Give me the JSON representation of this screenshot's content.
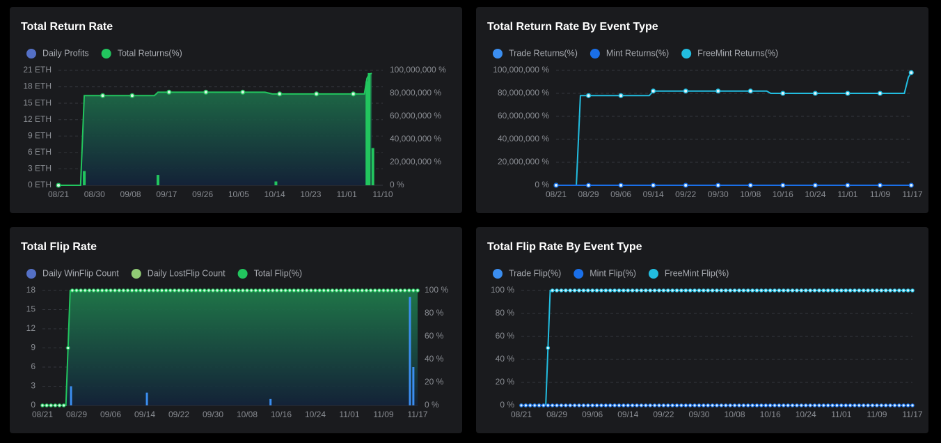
{
  "panels": [
    {
      "title": "Total Return Rate"
    },
    {
      "title": "Total Return Rate By Event Type"
    },
    {
      "title": "Total Flip Rate"
    },
    {
      "title": "Total Flip Rate By Event Type"
    }
  ],
  "chart_data": [
    {
      "type": "bar",
      "title": "Total Return Rate",
      "legend": [
        {
          "name": "Daily Profits",
          "color": "#5470c6"
        },
        {
          "name": "Total Returns(%)",
          "color": "#22c55e"
        }
      ],
      "y_left_ticks": [
        "0 ETH",
        "3 ETH",
        "6 ETH",
        "9 ETH",
        "12 ETH",
        "15 ETH",
        "18 ETH",
        "21 ETH"
      ],
      "y_left_range": [
        0,
        21
      ],
      "y_right_ticks": [
        "0 %",
        "20,000,000 %",
        "40,000,000 %",
        "60,000,000 %",
        "80,000,000 %",
        "100,000,000 %"
      ],
      "y_right_range": [
        0,
        100000000
      ],
      "x_ticks": [
        "08/21",
        "08/30",
        "09/08",
        "09/17",
        "09/26",
        "10/05",
        "10/14",
        "10/23",
        "11/01",
        "11/10"
      ],
      "x_range": [
        0,
        88
      ],
      "bars": [
        {
          "x": 7,
          "value": 2.6
        },
        {
          "x": 27,
          "value": 1.9
        },
        {
          "x": 59,
          "value": 0.7
        },
        {
          "x": 83.7,
          "value": 19.0
        },
        {
          "x": 84.3,
          "value": 20.5
        },
        {
          "x": 85.3,
          "value": 6.8
        }
      ],
      "line": [
        {
          "x": 0,
          "y": 0
        },
        {
          "x": 6,
          "y": 0
        },
        {
          "x": 7,
          "y": 78000000
        },
        {
          "x": 12,
          "y": 78000000
        },
        {
          "x": 20,
          "y": 78000000
        },
        {
          "x": 26,
          "y": 78000000
        },
        {
          "x": 27,
          "y": 81000000
        },
        {
          "x": 30,
          "y": 81000000
        },
        {
          "x": 40,
          "y": 81000000
        },
        {
          "x": 50,
          "y": 81000000
        },
        {
          "x": 56,
          "y": 81000000
        },
        {
          "x": 58,
          "y": 79500000
        },
        {
          "x": 60,
          "y": 79500000
        },
        {
          "x": 70,
          "y": 79500000
        },
        {
          "x": 80,
          "y": 79500000
        },
        {
          "x": 83,
          "y": 79500000
        },
        {
          "x": 83.7,
          "y": 93000000
        },
        {
          "x": 84.3,
          "y": 96500000
        },
        {
          "x": 85,
          "y": 97500000
        }
      ],
      "markers_x": [
        0,
        12,
        20,
        30,
        40,
        50,
        60,
        70,
        80
      ]
    },
    {
      "type": "line",
      "title": "Total Return Rate By Event Type",
      "legend": [
        {
          "name": "Trade Returns(%)",
          "color": "#3b8ef0"
        },
        {
          "name": "Mint Returns(%)",
          "color": "#1a6fe8"
        },
        {
          "name": "FreeMint Returns(%)",
          "color": "#22bde0"
        }
      ],
      "y_ticks": [
        "0 %",
        "20,000,000 %",
        "40,000,000 %",
        "60,000,000 %",
        "80,000,000 %",
        "100,000,000 %"
      ],
      "y_range": [
        0,
        100000000
      ],
      "x_ticks": [
        "08/21",
        "08/29",
        "09/06",
        "09/14",
        "09/22",
        "09/30",
        "10/08",
        "10/16",
        "10/24",
        "11/01",
        "11/09",
        "11/17"
      ],
      "x_range": [
        0,
        88
      ],
      "series": [
        {
          "name": "FreeMint Returns(%)",
          "color": "#22bde0",
          "points": [
            {
              "x": 0,
              "y": 0
            },
            {
              "x": 5,
              "y": 0
            },
            {
              "x": 6,
              "y": 78000000
            },
            {
              "x": 8,
              "y": 78000000
            },
            {
              "x": 16,
              "y": 78000000
            },
            {
              "x": 23,
              "y": 78000000
            },
            {
              "x": 24,
              "y": 82000000
            },
            {
              "x": 32,
              "y": 82000000
            },
            {
              "x": 40,
              "y": 82000000
            },
            {
              "x": 48,
              "y": 82000000
            },
            {
              "x": 52,
              "y": 82000000
            },
            {
              "x": 53,
              "y": 80000000
            },
            {
              "x": 56,
              "y": 80000000
            },
            {
              "x": 64,
              "y": 80000000
            },
            {
              "x": 72,
              "y": 80000000
            },
            {
              "x": 80,
              "y": 80000000
            },
            {
              "x": 86,
              "y": 80000000
            },
            {
              "x": 87,
              "y": 94000000
            },
            {
              "x": 87.7,
              "y": 98000000
            }
          ],
          "markers_x": [
            0,
            8,
            16,
            24,
            32,
            40,
            48,
            56,
            64,
            72,
            80,
            87.7
          ]
        },
        {
          "name": "Mint Returns(%)",
          "color": "#1a6fe8",
          "points": [
            {
              "x": 0,
              "y": 0
            },
            {
              "x": 87.7,
              "y": 0
            }
          ],
          "markers_x": [
            0,
            8,
            16,
            24,
            32,
            40,
            48,
            56,
            64,
            72,
            80,
            87.7
          ]
        }
      ]
    },
    {
      "type": "bar",
      "title": "Total Flip Rate",
      "legend": [
        {
          "name": "Daily WinFlip Count",
          "color": "#5470c6"
        },
        {
          "name": "Daily LostFlip Count",
          "color": "#91cc75"
        },
        {
          "name": "Total Flip(%)",
          "color": "#22c55e"
        }
      ],
      "y_left_ticks": [
        "0",
        "3",
        "6",
        "9",
        "12",
        "15",
        "18"
      ],
      "y_left_range": [
        0,
        18
      ],
      "y_right_ticks": [
        "0 %",
        "20 %",
        "40 %",
        "60 %",
        "80 %",
        "100 %"
      ],
      "y_right_range": [
        0,
        100
      ],
      "x_ticks": [
        "08/21",
        "08/29",
        "09/06",
        "09/14",
        "09/22",
        "09/30",
        "10/08",
        "10/16",
        "10/24",
        "11/01",
        "11/09",
        "11/17"
      ],
      "x_range": [
        0,
        88
      ],
      "bars": [
        {
          "x": 6.7,
          "value": 3,
          "color": "#3b8ef0"
        },
        {
          "x": 24.5,
          "value": 2,
          "color": "#3b8ef0"
        },
        {
          "x": 53.5,
          "value": 1,
          "color": "#3b8ef0"
        },
        {
          "x": 86.2,
          "value": 17,
          "color": "#3b8ef0"
        },
        {
          "x": 87,
          "value": 6,
          "color": "#3b8ef0"
        }
      ],
      "line": [
        {
          "x": 0,
          "y": 0
        },
        {
          "x": 5.5,
          "y": 0
        },
        {
          "x": 6.5,
          "y": 100
        },
        {
          "x": 88,
          "y": 100
        }
      ],
      "marker_step": 1
    },
    {
      "type": "line",
      "title": "Total Flip Rate By Event Type",
      "legend": [
        {
          "name": "Trade Flip(%)",
          "color": "#3b8ef0"
        },
        {
          "name": "Mint Flip(%)",
          "color": "#1a6fe8"
        },
        {
          "name": "FreeMint Flip(%)",
          "color": "#22bde0"
        }
      ],
      "y_ticks": [
        "0 %",
        "20 %",
        "40 %",
        "60 %",
        "80 %",
        "100 %"
      ],
      "y_range": [
        0,
        100
      ],
      "x_ticks": [
        "08/21",
        "08/29",
        "09/06",
        "09/14",
        "09/22",
        "09/30",
        "10/08",
        "10/16",
        "10/24",
        "11/01",
        "11/09",
        "11/17"
      ],
      "x_range": [
        0,
        88
      ],
      "series": [
        {
          "name": "FreeMint Flip(%)",
          "color": "#22bde0",
          "points": [
            {
              "x": 0,
              "y": 0
            },
            {
              "x": 5.5,
              "y": 0
            },
            {
              "x": 6.5,
              "y": 100
            },
            {
              "x": 88,
              "y": 100
            }
          ],
          "marker_step": 1
        },
        {
          "name": "Mint Flip(%)",
          "color": "#1a6fe8",
          "points": [
            {
              "x": 0,
              "y": 0
            },
            {
              "x": 88,
              "y": 0
            }
          ],
          "marker_step": 1
        }
      ]
    }
  ]
}
